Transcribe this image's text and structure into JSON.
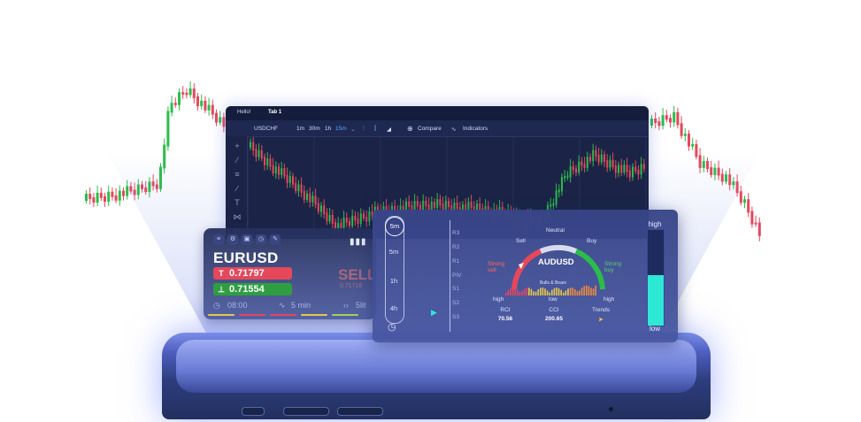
{
  "colors": {
    "bull": "#2bbd4a",
    "bear": "#e5485b",
    "accent": "#5aa7ff",
    "panel": "#1b2447",
    "cyan": "#2ee8d6"
  },
  "chart_window": {
    "tabs": [
      "Hello!",
      "Tab 1"
    ],
    "symbol": "USDCHF",
    "intervals": [
      "1m",
      "30m",
      "1h",
      "15m"
    ],
    "active_interval": "15m",
    "compare_label": "Compare",
    "indicators_label": "Indicators",
    "sidebar_icons": [
      "crosshair-icon",
      "trendline-icon",
      "horizontal-lines-icon",
      "brush-icon",
      "text-icon",
      "pattern-icon",
      "measure-icon"
    ]
  },
  "quote_card": {
    "toolbar_icons": [
      "menu-icon",
      "settings-icon",
      "save-icon",
      "time-icon",
      "draw-icon"
    ],
    "symbol": "EURUSD",
    "ask": {
      "icon": "T",
      "value": "0.71797"
    },
    "bid": {
      "icon": "⊥",
      "value": "0.71554"
    },
    "sell_label": "SELL",
    "sell_price": "0.71716",
    "time": "08:00",
    "interval": "5 min",
    "spread": "5lit"
  },
  "sentiment_panel": {
    "timeframes": [
      "5m",
      "5m",
      "1h",
      "4h"
    ],
    "selected_timeframe": "5m",
    "levels": [
      "R3",
      "R2",
      "R1",
      "PIV",
      "S1",
      "S2",
      "S3"
    ],
    "symbol": "AUDUSD",
    "gauge_labels": {
      "neutral": "Neutral",
      "sell": "Sell",
      "buy": "Buy",
      "strong_sell": "Strong sell",
      "strong_buy": "Strong buy"
    },
    "bulls_bears": "Bulls & Bears",
    "range_labels": {
      "left": "high",
      "mid": "low",
      "right": "high"
    },
    "stats": [
      {
        "name": "RCI",
        "value": "70.56"
      },
      {
        "name": "CCI",
        "value": "200.65"
      },
      {
        "name": "Trends",
        "value": "➤"
      }
    ],
    "meter": {
      "top": "high",
      "bottom": "low",
      "level": 0.53
    }
  }
}
